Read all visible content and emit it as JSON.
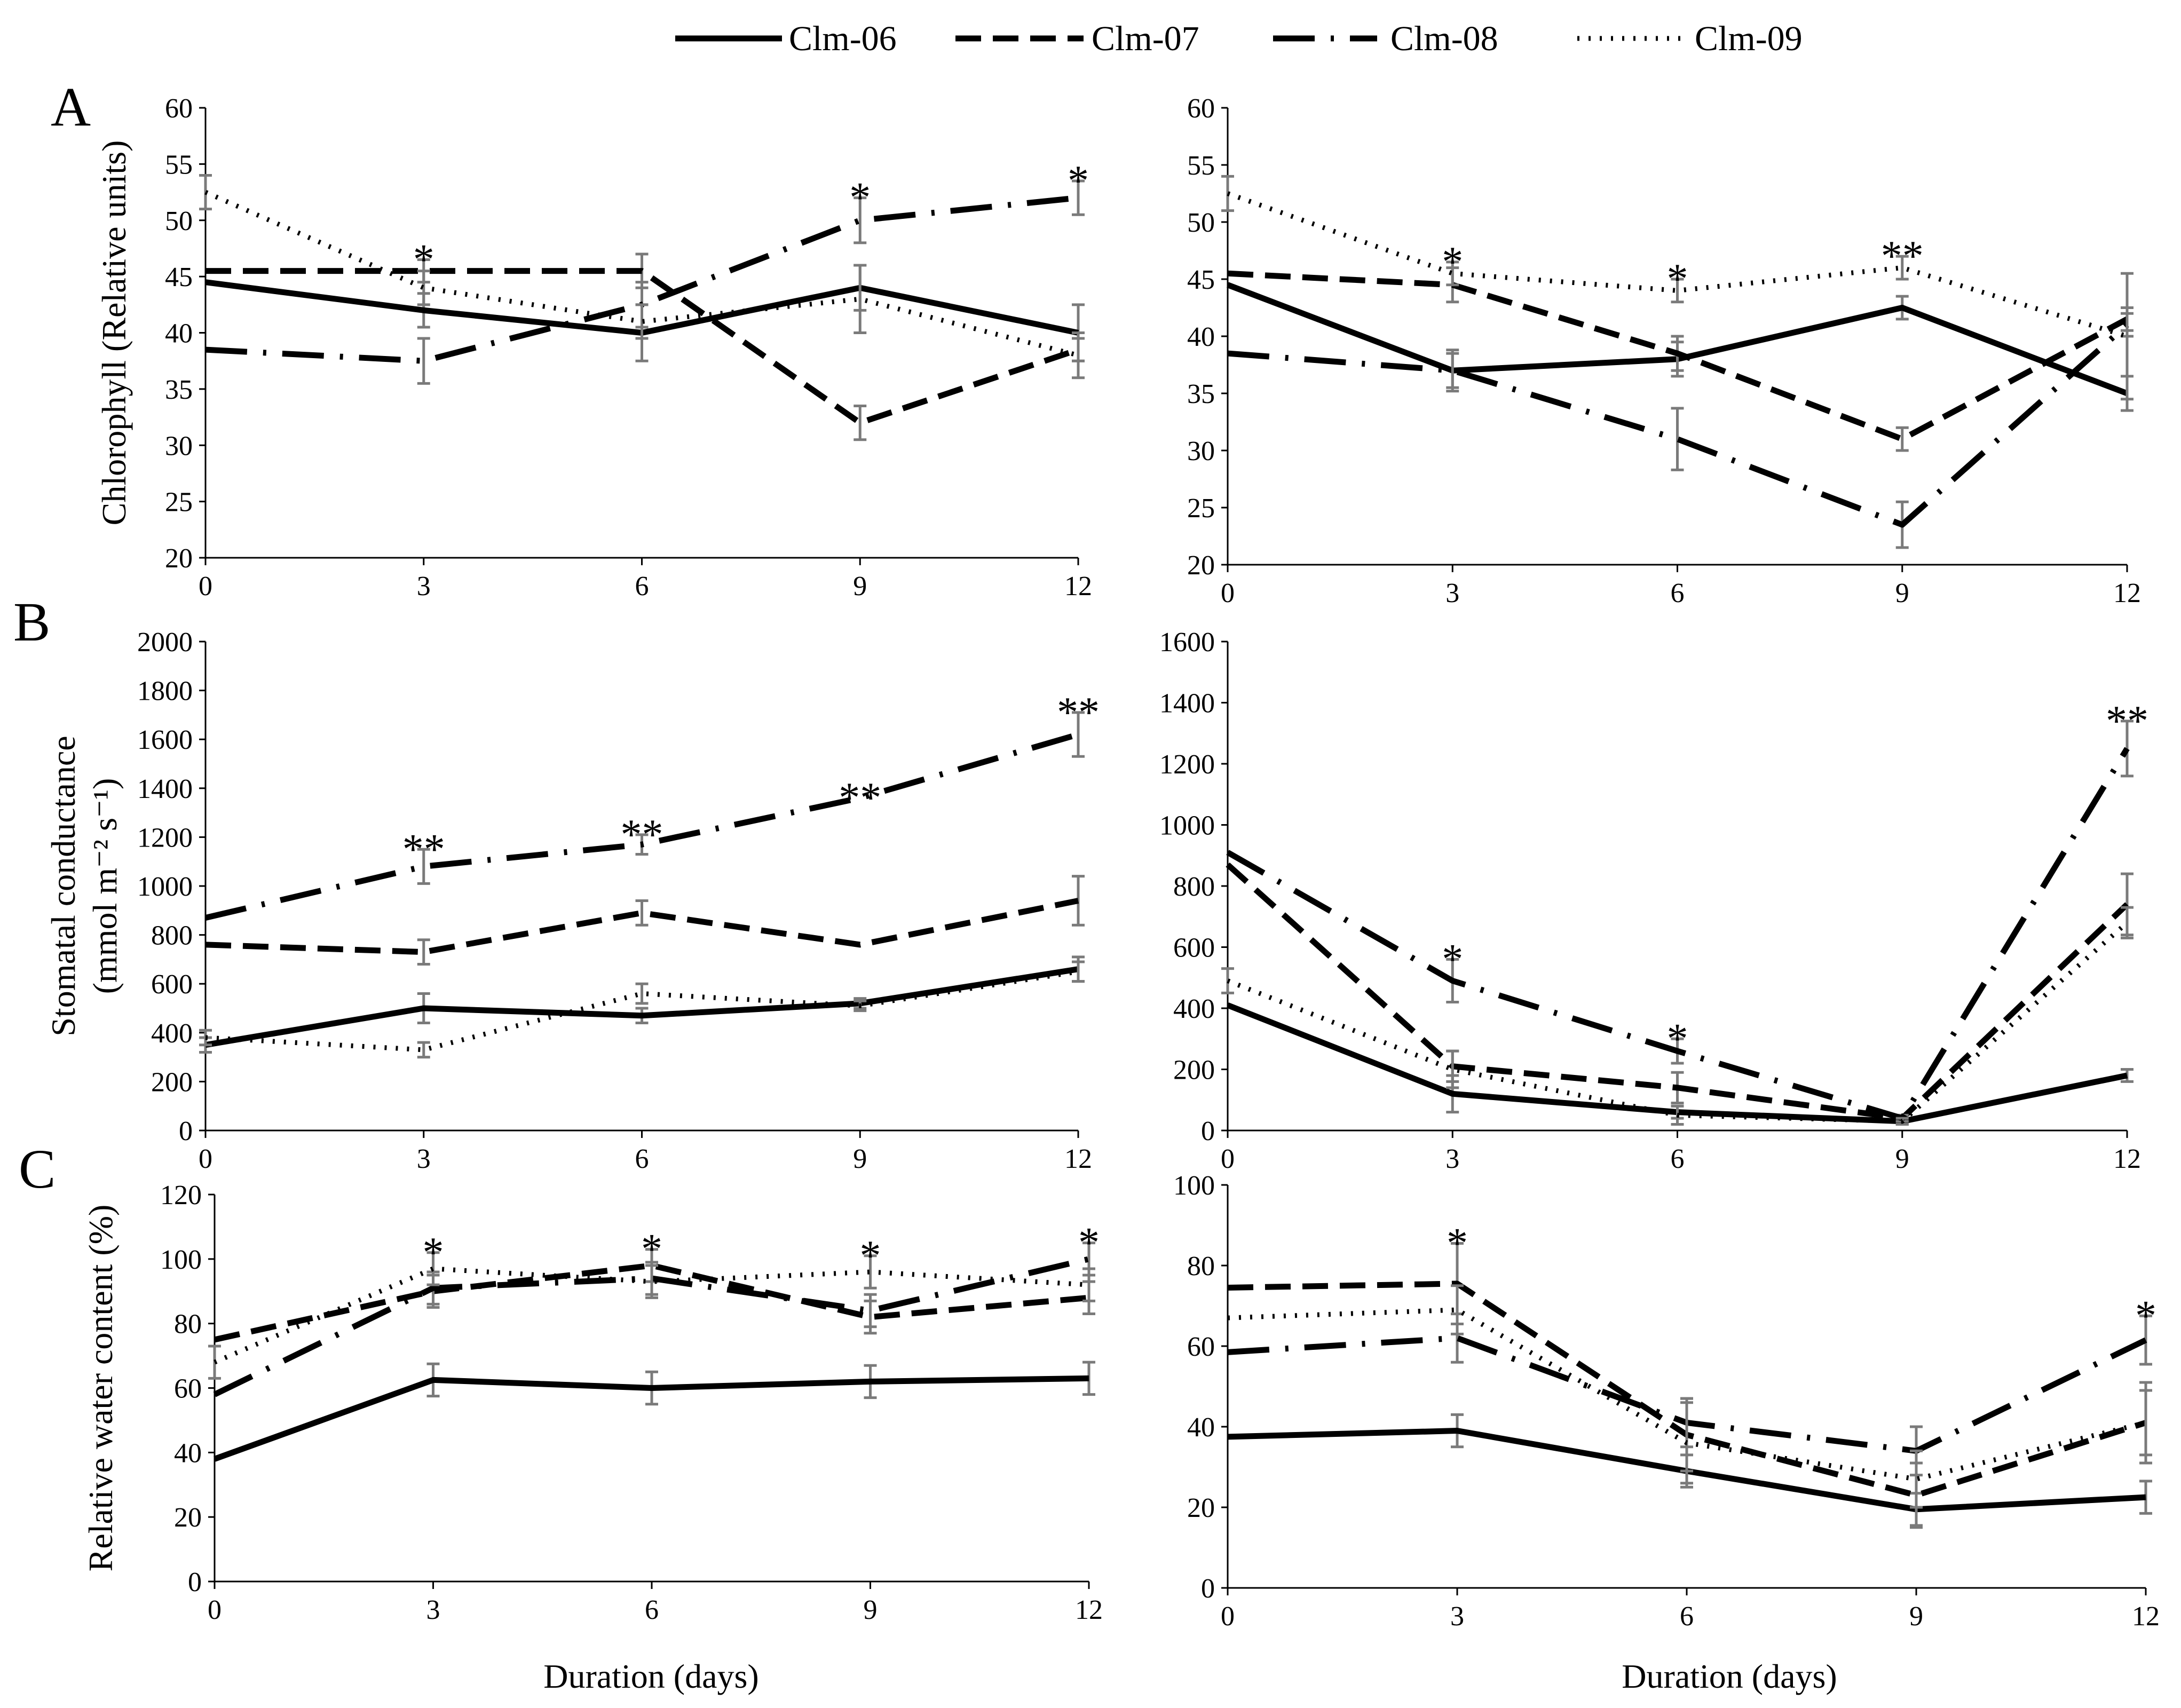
{
  "legend": [
    {
      "name": "Clm-06",
      "style": "solid"
    },
    {
      "name": "Clm-07",
      "style": "dashed"
    },
    {
      "name": "Clm-08",
      "style": "dashdot"
    },
    {
      "name": "Clm-09",
      "style": "dotted"
    }
  ],
  "xlabel": "Duration (days)",
  "chart_data": [
    {
      "id": "A-left",
      "panel_label": "A",
      "type": "line",
      "ylabel": "Chlorophyll (Relative units)",
      "ylim": [
        20,
        60
      ],
      "yticks": [
        20,
        25,
        30,
        35,
        40,
        45,
        50,
        55,
        60
      ],
      "x": [
        0,
        3,
        6,
        9,
        12
      ],
      "xticks": [
        "0",
        "3",
        "6",
        "9",
        "12"
      ],
      "series": [
        {
          "name": "Clm-06",
          "values": [
            44.5,
            42,
            40,
            44,
            40
          ],
          "err": [
            0,
            1.5,
            2.5,
            2,
            2.5
          ]
        },
        {
          "name": "Clm-07",
          "values": [
            45.5,
            45.5,
            45.5,
            32,
            38.5
          ],
          "err": [
            0,
            1,
            1.5,
            1.5,
            1
          ]
        },
        {
          "name": "Clm-08",
          "values": [
            38.5,
            37.5,
            42.5,
            50,
            52
          ],
          "err": [
            0,
            2,
            2,
            2,
            1.5
          ]
        },
        {
          "name": "Clm-09",
          "values": [
            52.5,
            44,
            41,
            43,
            38
          ],
          "err": [
            1.5,
            1.5,
            1.5,
            3,
            2
          ]
        }
      ],
      "annotations": [
        {
          "x": 3,
          "text": "*"
        },
        {
          "x": 9,
          "text": "*"
        },
        {
          "x": 12,
          "text": "*"
        }
      ]
    },
    {
      "id": "A-right",
      "panel_label": "",
      "type": "line",
      "ylabel": "",
      "ylim": [
        20,
        60
      ],
      "yticks": [
        20,
        25,
        30,
        35,
        40,
        45,
        50,
        55,
        60
      ],
      "x": [
        0,
        3,
        6,
        9,
        12
      ],
      "xticks": [
        "0",
        "3",
        "6",
        "9",
        "12"
      ],
      "series": [
        {
          "name": "Clm-06",
          "values": [
            44.5,
            37,
            38,
            42.5,
            35
          ],
          "err": [
            0,
            1.8,
            1.5,
            1,
            1.5
          ]
        },
        {
          "name": "Clm-07",
          "values": [
            45.5,
            44.5,
            38.5,
            31,
            41.5
          ],
          "err": [
            0,
            1.5,
            1.5,
            1,
            1
          ]
        },
        {
          "name": "Clm-08",
          "values": [
            38.5,
            37,
            31,
            23.5,
            41
          ],
          "err": [
            0,
            1.5,
            2.7,
            2,
            1
          ]
        },
        {
          "name": "Clm-09",
          "values": [
            52.5,
            45.5,
            44,
            46,
            40
          ],
          "err": [
            1.5,
            1,
            1,
            1,
            5.5
          ]
        }
      ],
      "annotations": [
        {
          "x": 3,
          "text": "*"
        },
        {
          "x": 6,
          "text": "*"
        },
        {
          "x": 9,
          "text": "**"
        }
      ]
    },
    {
      "id": "B-left",
      "panel_label": "B",
      "type": "line",
      "ylabel": "Stomatal conductance",
      "ylabel2": "(mmol m⁻² s⁻¹)",
      "ylim": [
        0,
        2000
      ],
      "yticks": [
        0,
        200,
        400,
        600,
        800,
        1000,
        1200,
        1400,
        1600,
        1800,
        2000
      ],
      "x": [
        0,
        3,
        6,
        9,
        12
      ],
      "xticks": [
        "0",
        "3",
        "6",
        "9",
        "12"
      ],
      "series": [
        {
          "name": "Clm-06",
          "values": [
            350,
            500,
            470,
            520,
            660
          ],
          "err": [
            30,
            60,
            30,
            20,
            50
          ]
        },
        {
          "name": "Clm-07",
          "values": [
            760,
            730,
            890,
            760,
            940
          ],
          "err": [
            0,
            50,
            50,
            0,
            100
          ]
        },
        {
          "name": "Clm-08",
          "values": [
            870,
            1080,
            1170,
            1360,
            1620
          ],
          "err": [
            0,
            70,
            40,
            0,
            90
          ]
        },
        {
          "name": "Clm-09",
          "values": [
            380,
            330,
            560,
            510,
            650
          ],
          "err": [
            30,
            30,
            40,
            20,
            40
          ]
        }
      ],
      "annotations": [
        {
          "x": 3,
          "text": "**"
        },
        {
          "x": 6,
          "text": "**"
        },
        {
          "x": 9,
          "text": "**"
        },
        {
          "x": 12,
          "text": "**"
        }
      ]
    },
    {
      "id": "B-right",
      "panel_label": "",
      "type": "line",
      "ylabel": "",
      "ylim": [
        0,
        1600
      ],
      "yticks": [
        0,
        200,
        400,
        600,
        800,
        1000,
        1200,
        1400,
        1600
      ],
      "x": [
        0,
        3,
        6,
        9,
        12
      ],
      "xticks": [
        "0",
        "3",
        "6",
        "9",
        "12"
      ],
      "series": [
        {
          "name": "Clm-06",
          "values": [
            410,
            120,
            60,
            30,
            180
          ],
          "err": [
            0,
            60,
            20,
            10,
            20
          ]
        },
        {
          "name": "Clm-07",
          "values": [
            870,
            210,
            140,
            40,
            740
          ],
          "err": [
            0,
            50,
            50,
            10,
            100
          ]
        },
        {
          "name": "Clm-08",
          "values": [
            910,
            490,
            260,
            40,
            1250
          ],
          "err": [
            0,
            70,
            40,
            10,
            90
          ]
        },
        {
          "name": "Clm-09",
          "values": [
            490,
            200,
            50,
            30,
            680
          ],
          "err": [
            40,
            60,
            30,
            10,
            50
          ]
        }
      ],
      "annotations": [
        {
          "x": 3,
          "text": "*"
        },
        {
          "x": 6,
          "text": "*"
        },
        {
          "x": 12,
          "text": "**"
        }
      ]
    },
    {
      "id": "C-left",
      "panel_label": "C",
      "type": "line",
      "ylabel": "Relative water content (%)",
      "ylim": [
        0,
        120
      ],
      "yticks": [
        0,
        20,
        40,
        60,
        80,
        100,
        120
      ],
      "x": [
        0,
        3,
        6,
        9,
        12
      ],
      "xticks": [
        "0",
        "3",
        "6",
        "9",
        "12"
      ],
      "series": [
        {
          "name": "Clm-06",
          "values": [
            38,
            62.5,
            60,
            62,
            63
          ],
          "err": [
            0,
            5,
            5,
            5,
            5
          ]
        },
        {
          "name": "Clm-07",
          "values": [
            75,
            90,
            98,
            82,
            88
          ],
          "err": [
            0,
            5,
            5,
            5,
            5
          ]
        },
        {
          "name": "Clm-08",
          "values": [
            58,
            91,
            94,
            84,
            100
          ],
          "err": [
            0,
            5,
            5,
            5,
            5
          ]
        },
        {
          "name": "Clm-09",
          "values": [
            68,
            97,
            93,
            96,
            92
          ],
          "err": [
            5,
            5,
            5,
            5,
            5
          ]
        }
      ],
      "annotations": [
        {
          "x": 3,
          "text": "*"
        },
        {
          "x": 6,
          "text": "*"
        },
        {
          "x": 9,
          "text": "*"
        },
        {
          "x": 12,
          "text": "*"
        }
      ]
    },
    {
      "id": "C-right",
      "panel_label": "",
      "type": "line",
      "ylabel": "",
      "ylim": [
        0,
        100
      ],
      "yticks": [
        0,
        20,
        40,
        60,
        80,
        100
      ],
      "x": [
        0,
        3,
        6,
        9,
        12
      ],
      "xticks": [
        "0",
        "3",
        "6",
        "9",
        "12"
      ],
      "series": [
        {
          "name": "Clm-06",
          "values": [
            37.5,
            39,
            29,
            19.5,
            22.5
          ],
          "err": [
            0,
            4,
            4,
            4,
            4
          ]
        },
        {
          "name": "Clm-07",
          "values": [
            74.5,
            75.5,
            38,
            23,
            41
          ],
          "err": [
            0,
            10,
            9,
            8,
            10
          ]
        },
        {
          "name": "Clm-08",
          "values": [
            58.5,
            62,
            41,
            34,
            61.5
          ],
          "err": [
            0,
            6,
            6,
            6,
            6
          ]
        },
        {
          "name": "Clm-09",
          "values": [
            67,
            69,
            36,
            27,
            41
          ],
          "err": [
            0,
            6,
            10,
            7,
            8
          ]
        }
      ],
      "annotations": [
        {
          "x": 3,
          "text": "*"
        },
        {
          "x": 12,
          "text": "*"
        }
      ]
    }
  ]
}
